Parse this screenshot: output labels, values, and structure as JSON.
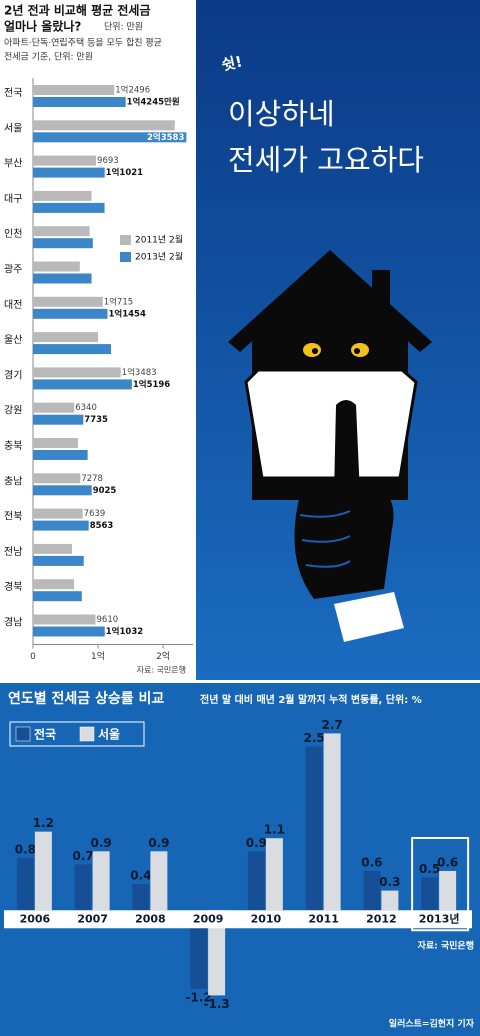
{
  "chart_data": [
    {
      "type": "barh",
      "title": [
        "2년 전과 비교해 평균 전세금",
        "얼마나 올랐나?"
      ],
      "unit": "단위: 만원",
      "subtitle": [
        "아파트·단독·연립주택 등을 모두 합친 평균",
        "전세금 기준, 단위: 만원"
      ],
      "categories": [
        "전국",
        "서울",
        "부산",
        "대구",
        "인천",
        "광주",
        "대전",
        "울산",
        "경기",
        "강원",
        "충북",
        "충남",
        "전북",
        "전남",
        "경북",
        "경남"
      ],
      "series": [
        {
          "name": "2011년 2월",
          "color": "#b9b9b9",
          "values": [
            12496,
            21800,
            9693,
            9000,
            8700,
            7200,
            10715,
            10000,
            13483,
            6340,
            6900,
            7278,
            7639,
            6000,
            6300,
            9610
          ],
          "value_labels": [
            "1억2496",
            null,
            "9693",
            null,
            null,
            null,
            "1억715",
            null,
            "1억3483",
            "6340",
            null,
            "7278",
            "7639",
            null,
            null,
            "9610"
          ]
        },
        {
          "name": "2013년 2월",
          "color": "#3a86c8",
          "values": [
            14245,
            23583,
            11021,
            11000,
            9200,
            9000,
            11454,
            12000,
            15196,
            7735,
            8400,
            9025,
            8563,
            7800,
            7500,
            11032
          ],
          "value_labels": [
            "1억4245만원",
            "2억3583",
            "1억1021",
            null,
            null,
            null,
            "1억1454",
            null,
            "1억5196",
            "7735",
            null,
            "9025",
            "8563",
            null,
            null,
            "1억1032"
          ]
        }
      ],
      "xlim": [
        0,
        24600
      ],
      "xticks": [
        0,
        {
          "value": 10000,
          "label": "1억"
        },
        {
          "value": 20000,
          "label": "2억"
        }
      ],
      "legend": "right",
      "source": "자료: 국민은행"
    },
    {
      "type": "bar",
      "title": "연도별 전세금 상승률 비교",
      "subtitle": "전년 말 대비 매년 2월 말까지 누적 변동률, 단위: %",
      "categories": [
        "2006",
        "2007",
        "2008",
        "2009",
        "2010",
        "2011",
        "2012",
        "2013년"
      ],
      "series": [
        {
          "name": "전국",
          "color": "#174f96",
          "values": [
            0.8,
            0.7,
            0.4,
            -1.2,
            0.9,
            2.5,
            0.6,
            0.5
          ]
        },
        {
          "name": "서울",
          "color": "#d9dde2",
          "values": [
            1.2,
            0.9,
            0.9,
            -1.3,
            1.1,
            2.7,
            0.3,
            0.6
          ]
        }
      ],
      "ylim": [
        -1.5,
        3
      ],
      "legend": "top-left",
      "source": "자료: 국민은행"
    }
  ],
  "illustration": {
    "exclaim": "쉿!",
    "headline": [
      "이상하네",
      "전세가 고요하다"
    ],
    "credit": "일러스트=김현지 기자"
  }
}
